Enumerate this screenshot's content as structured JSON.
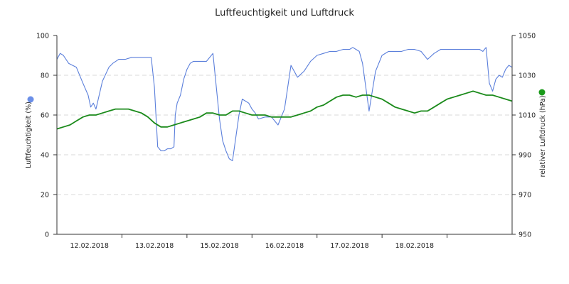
{
  "chart_data": {
    "type": "line",
    "title": "Luftfeuchtigkeit und Luftdruck",
    "x_tick_labels": [
      "12.02.2018",
      "13.02.2018",
      "15.02.2018",
      "16.02.2018",
      "17.02.2018",
      "18.02.2018"
    ],
    "y_left": {
      "label": "Luftfeuchtigkeit (%)",
      "ylim": [
        0,
        100
      ],
      "ticks": [
        "0",
        "20",
        "40",
        "60",
        "80",
        "100"
      ]
    },
    "y_right": {
      "label": "relativer Luftdruck (hPa)",
      "ylim": [
        950,
        1050
      ],
      "ticks": [
        "950",
        "970",
        "990",
        "1010",
        "1030",
        "1050"
      ]
    },
    "grid": true,
    "series": [
      {
        "axis": "left",
        "color": "#5b7fdb",
        "marker_color": "#6b8fe8",
        "x": [
          0,
          0.05,
          0.1,
          0.18,
          0.3,
          0.4,
          0.48,
          0.52,
          0.56,
          0.6,
          0.7,
          0.8,
          0.86,
          0.95,
          1.05,
          1.15,
          1.25,
          1.35,
          1.45,
          1.5,
          1.55,
          1.6,
          1.65,
          1.7,
          1.75,
          1.8,
          1.82,
          1.85,
          1.9,
          1.95,
          2.0,
          2.05,
          2.1,
          2.2,
          2.3,
          2.4,
          2.5,
          2.55,
          2.6,
          2.65,
          2.7,
          2.8,
          2.85,
          2.9,
          2.95,
          3.0,
          3.05,
          3.1,
          3.2,
          3.3,
          3.4,
          3.5,
          3.6,
          3.7,
          3.8,
          3.9,
          4.0,
          4.1,
          4.2,
          4.3,
          4.4,
          4.5,
          4.55,
          4.6,
          4.65,
          4.7,
          4.8,
          4.9,
          5.0,
          5.1,
          5.2,
          5.3,
          5.4,
          5.5,
          5.6,
          5.7,
          5.8,
          5.9,
          6.0,
          6.1,
          6.2,
          6.3,
          6.4,
          6.45,
          6.5,
          6.55,
          6.6,
          6.65,
          6.7,
          6.75,
          6.8,
          6.85,
          6.9,
          6.95,
          7.0
        ],
        "values": [
          88,
          91,
          90,
          86,
          84,
          76,
          70,
          64,
          66,
          63,
          77,
          84,
          86,
          88,
          88,
          89,
          89,
          89,
          89,
          74,
          44,
          42,
          42,
          43,
          43,
          44,
          60,
          66,
          70,
          78,
          83,
          86,
          87,
          87,
          87,
          91,
          58,
          47,
          42,
          38,
          37,
          60,
          68,
          67,
          66,
          63,
          61,
          58,
          59,
          59,
          55,
          63,
          85,
          79,
          82,
          87,
          90,
          91,
          92,
          92,
          93,
          93,
          94,
          93,
          92,
          86,
          62,
          82,
          90,
          92,
          92,
          92,
          93,
          93,
          92,
          88,
          91,
          93,
          93,
          93,
          93,
          93,
          93,
          93,
          93,
          92,
          94,
          76,
          72,
          78,
          80,
          79,
          83,
          85,
          84
        ],
        "x_domain": [
          0,
          7
        ]
      },
      {
        "axis": "right",
        "color": "#1a8a1a",
        "marker_color": "#1a9a1a",
        "x": [
          0,
          0.1,
          0.2,
          0.3,
          0.4,
          0.5,
          0.6,
          0.7,
          0.8,
          0.9,
          1.0,
          1.1,
          1.2,
          1.3,
          1.4,
          1.5,
          1.6,
          1.7,
          1.8,
          1.9,
          2.0,
          2.1,
          2.2,
          2.3,
          2.4,
          2.5,
          2.6,
          2.7,
          2.8,
          2.9,
          3.0,
          3.1,
          3.2,
          3.3,
          3.4,
          3.5,
          3.6,
          3.7,
          3.8,
          3.9,
          4.0,
          4.1,
          4.2,
          4.3,
          4.4,
          4.5,
          4.6,
          4.7,
          4.8,
          4.9,
          5.0,
          5.1,
          5.2,
          5.3,
          5.4,
          5.5,
          5.6,
          5.7,
          5.8,
          5.9,
          6.0,
          6.1,
          6.2,
          6.3,
          6.4,
          6.5,
          6.6,
          6.7,
          6.8,
          6.9,
          7.0
        ],
        "values": [
          1003,
          1004,
          1005,
          1007,
          1009,
          1010,
          1010,
          1011,
          1012,
          1013,
          1013,
          1013,
          1012,
          1011,
          1009,
          1006,
          1004,
          1004,
          1005,
          1006,
          1007,
          1008,
          1009,
          1011,
          1011,
          1010,
          1010,
          1012,
          1012,
          1011,
          1010,
          1010,
          1010,
          1009,
          1009,
          1009,
          1009,
          1010,
          1011,
          1012,
          1014,
          1015,
          1017,
          1019,
          1020,
          1020,
          1019,
          1020,
          1020,
          1019,
          1018,
          1016,
          1014,
          1013,
          1012,
          1011,
          1012,
          1012,
          1014,
          1016,
          1018,
          1019,
          1020,
          1021,
          1022,
          1021,
          1020,
          1020,
          1019,
          1018,
          1017
        ],
        "x_domain": [
          0,
          7
        ]
      }
    ]
  }
}
